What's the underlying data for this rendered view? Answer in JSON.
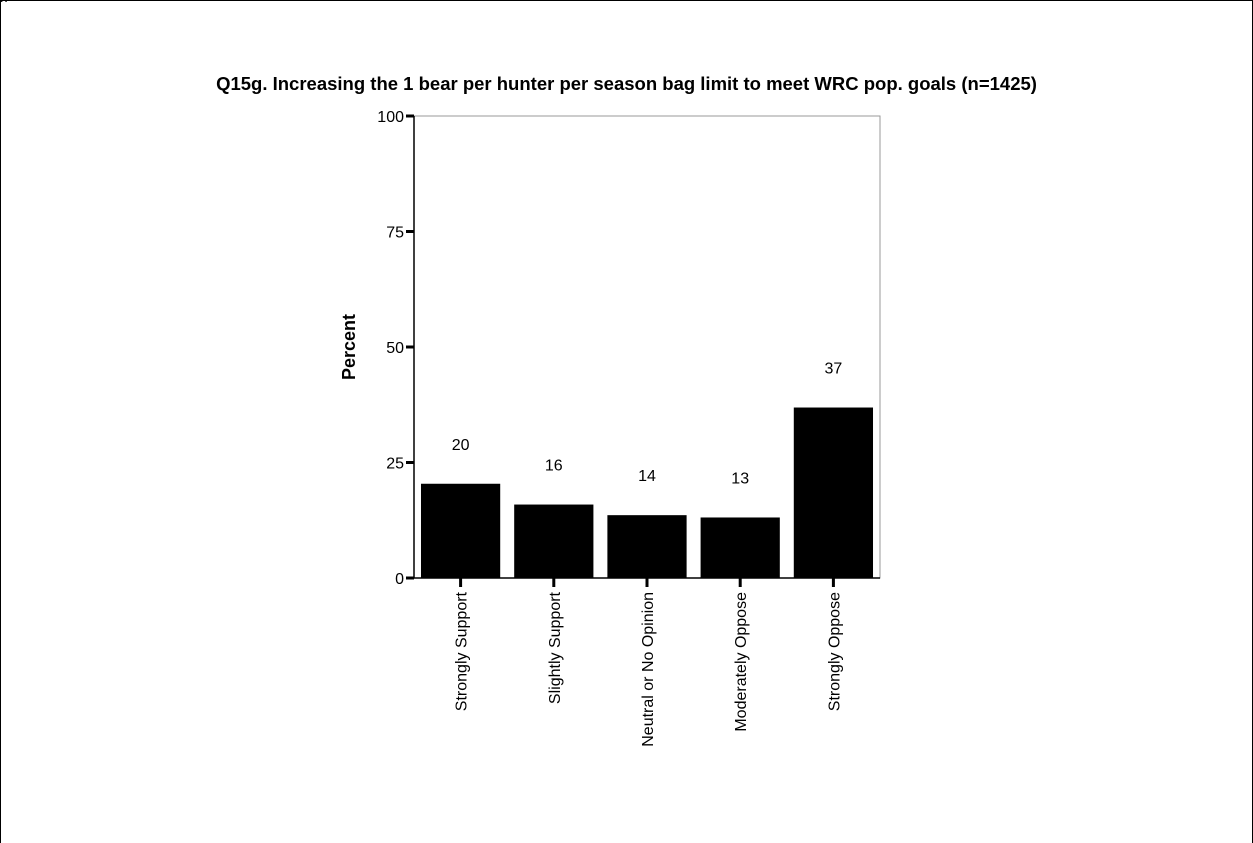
{
  "page_mark": "g",
  "chart_data": {
    "type": "bar",
    "title": "Q15g. Increasing the 1 bear per hunter per season bag limit to meet WRC pop. goals (n=1425)",
    "xlabel": "",
    "ylabel": "Percent",
    "categories": [
      "Strongly Support",
      "Slightly Support",
      "Neutral or No Opinion",
      "Moderately Oppose",
      "Strongly Oppose"
    ],
    "values": [
      20.4,
      15.9,
      13.6,
      13.1,
      36.9
    ],
    "data_labels": [
      "20",
      "16",
      "14",
      "13",
      "37"
    ],
    "yticks": [
      0,
      25,
      50,
      75,
      100
    ],
    "ylim": [
      0,
      100
    ],
    "bar_color": "#000000",
    "grid": false,
    "legend": "none"
  }
}
